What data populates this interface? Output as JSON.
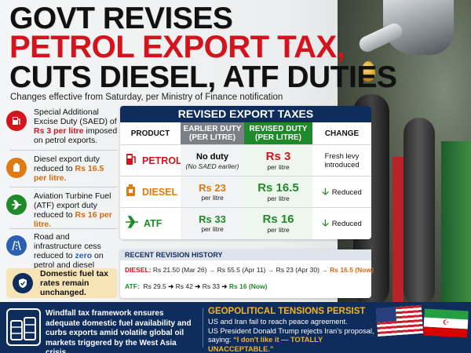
{
  "headline": {
    "line1": "GOVT REVISES",
    "line2": "PETROL EXPORT TAX,",
    "line3": "CUTS DIESEL, ATF DUTIES",
    "subtitle": "Changes effective from Saturday, per Ministry of Finance notification"
  },
  "sidebar": {
    "items": [
      {
        "icon": "fuel-pump-icon",
        "color": "#d3141c",
        "pre": "Special Additional Excise Duty (SAED) of ",
        "highlight": "Rs 3 per litre",
        "post": " imposed on petrol exports."
      },
      {
        "icon": "fuel-can-icon",
        "color": "#e07a12",
        "pre": "Diesel export duty reduced to ",
        "highlight": "Rs 16.5 per litre.",
        "post": ""
      },
      {
        "icon": "airplane-icon",
        "color": "#1f8a2a",
        "pre": "Aviation Turbine Fuel (ATF) export duty reduced to ",
        "highlight": "Rs 16 per litre.",
        "post": ""
      },
      {
        "icon": "road-icon",
        "color": "#2a5fb3",
        "pre": "Road and infrastructure cess reduced to ",
        "highlight": "zero",
        "post": " on petrol and diesel exports."
      }
    ],
    "domestic": "Domestic fuel tax rates remain unchanged."
  },
  "table": {
    "title": "REVISED EXPORT TAXES",
    "headers": [
      "PRODUCT",
      "EARLIER DUTY (PER LITRE)",
      "REVISED DUTY (PER LITRE)",
      "CHANGE"
    ],
    "rows": [
      {
        "product": "PETROL",
        "color": "#d3141c",
        "earlier": "No duty",
        "earlier_sub": "(No SAED earlier)",
        "revised": "Rs 3",
        "revised_sub": "per litre",
        "change": "Fresh levy introduced"
      },
      {
        "product": "DIESEL",
        "color": "#e07a12",
        "earlier": "Rs 23",
        "earlier_sub": "per litre",
        "revised": "Rs 16.5",
        "revised_sub": "per litre",
        "change": "Reduced"
      },
      {
        "product": "ATF",
        "color": "#1f8a2a",
        "earlier": "Rs 33",
        "earlier_sub": "per litre",
        "revised": "Rs 16",
        "revised_sub": "per litre",
        "change": "Reduced"
      }
    ]
  },
  "history": {
    "title": "RECENT REVISION HISTORY",
    "diesel_label": "DIESEL:",
    "diesel_steps": [
      "Rs 21.50 (Mar 26)",
      "Rs 55.5 (Apr 11)",
      "Rs 23 (Apr 30)",
      "Rs 16.5 (Now)"
    ],
    "atf_label": "ATF:",
    "atf_steps": [
      "Rs 29.5",
      "Rs 42",
      "Rs 33",
      "Rs 16 (Now)"
    ]
  },
  "footer": {
    "left": "Windfall tax framework ensures adequate domestic fuel availability and curbs exports amid volatile global oil markets triggered by the West Asia crisis.",
    "right_title": "GEOPOLITICAL TENSIONS PERSIST",
    "right_line1": "US and Iran fail to reach peace agreement.",
    "right_line2": "US President Donald Trump rejects Iran's proposal, saying:",
    "right_quote": "“I don't like it — TOTALLY UNACCEPTABLE.”"
  }
}
